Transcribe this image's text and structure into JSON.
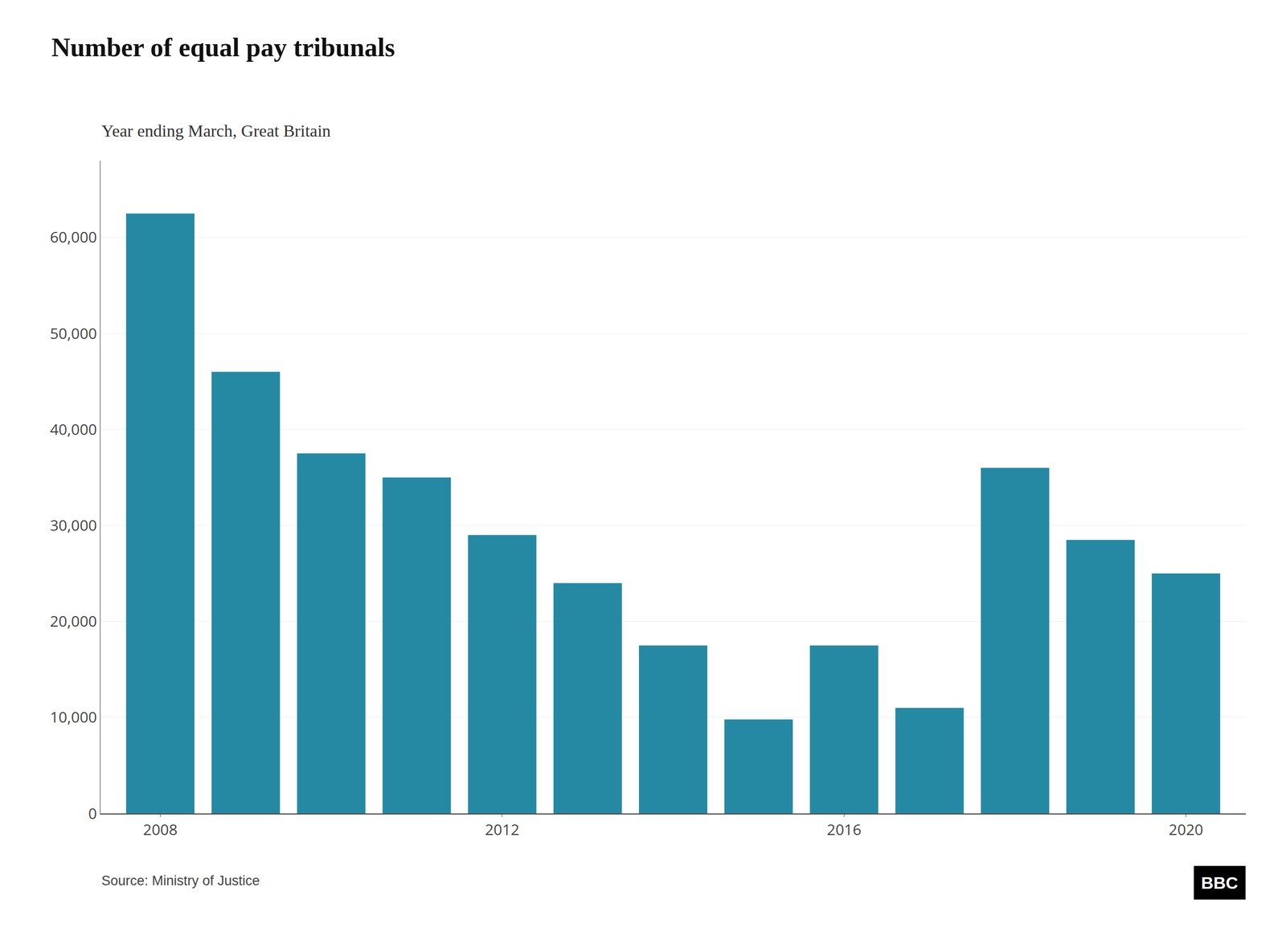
{
  "chart_data": {
    "type": "bar",
    "title": "Number of equal pay tribunals",
    "subtitle": "Year ending March, Great Britain",
    "source": "Source: Ministry of Justice",
    "annotations": [
      "BBC"
    ],
    "x": [
      2008,
      2009,
      2010,
      2011,
      2012,
      2013,
      2014,
      2015,
      2016,
      2017,
      2018,
      2019,
      2020
    ],
    "values": [
      62500,
      46000,
      37500,
      35000,
      29000,
      24000,
      17500,
      9800,
      17500,
      11000,
      36000,
      28500,
      25000
    ],
    "color": "#2589a4",
    "xlim": [
      2007.3,
      2020.7
    ],
    "xticks": [
      2008,
      2012,
      2016,
      2020
    ],
    "ylim": [
      0,
      68000
    ],
    "yticks": [
      0,
      {
        "value": 10000,
        "label": "10,000"
      },
      {
        "value": 20000,
        "label": "20,000"
      },
      {
        "value": 30000,
        "label": "30,000"
      },
      {
        "value": 40000,
        "label": "40,000"
      },
      {
        "value": 50000,
        "label": "50,000"
      },
      {
        "value": 60000,
        "label": "60,000"
      }
    ],
    "grid": true
  }
}
